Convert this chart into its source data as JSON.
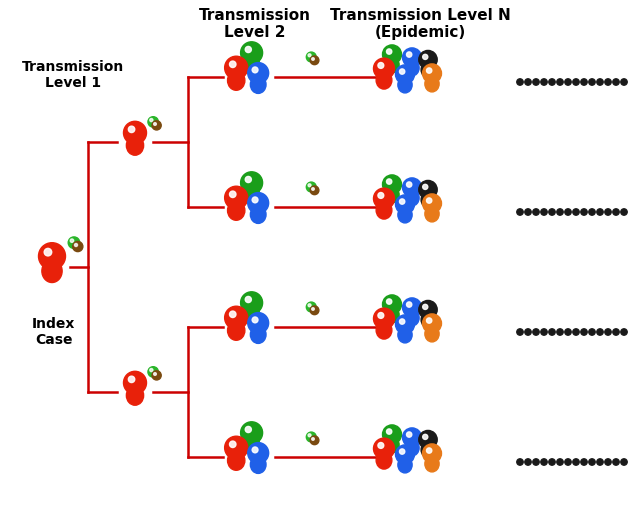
{
  "title_level2": "Transmission\nLevel 2",
  "title_levelN": "Transmission Level N\n(Epidemic)",
  "label_level1": "Transmission\nLevel 1",
  "label_index": "Index\nCase",
  "bg_color": "#ffffff",
  "red": "#e8210a",
  "green": "#1a9e1a",
  "blue": "#2060e8",
  "orange": "#e87a1a",
  "black": "#1a1a1a",
  "virus_green": "#2ab52a",
  "virus_brown": "#7a4a10",
  "line_color": "#cc0000",
  "dot_color": "#1a1a1a",
  "figw": 6.4,
  "figh": 5.27,
  "dpi": 100
}
